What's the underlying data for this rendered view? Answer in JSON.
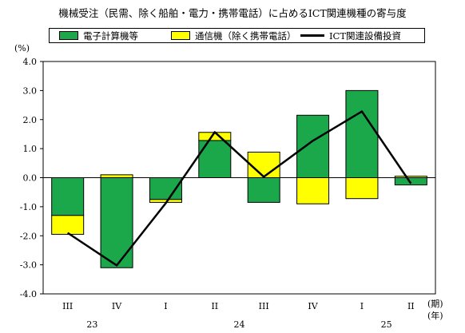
{
  "chart_data": {
    "type": "bar",
    "title": "機械受注（民需、除く船舶・電力・携帯電話）に占めるICT関連機種の寄与度",
    "ylabel": "(%)",
    "ylim": [
      -4.0,
      4.0
    ],
    "yticks": [
      "4.0",
      "3.0",
      "2.0",
      "1.0",
      "0.0",
      "-1.0",
      "-2.0",
      "-3.0",
      "-4.0"
    ],
    "categories": [
      "III",
      "IV",
      "I",
      "II",
      "III",
      "IV",
      "I",
      "II"
    ],
    "x_unit": "(期)",
    "year_unit": "(年)",
    "years": [
      {
        "label": "23",
        "center_index": 0.5
      },
      {
        "label": "24",
        "center_index": 3.5
      },
      {
        "label": "25",
        "center_index": 6.5
      }
    ],
    "stacked": true,
    "series": [
      {
        "name": "電子計算機等",
        "type": "bar",
        "color": "#1aa84b",
        "values": [
          -1.3,
          -3.1,
          -0.75,
          1.28,
          -0.85,
          2.15,
          3.0,
          -0.25
        ]
      },
      {
        "name": "通信機（除く携帯電話）",
        "type": "bar",
        "color": "#ffff00",
        "values": [
          -0.65,
          0.1,
          -0.1,
          0.28,
          0.88,
          -0.9,
          -0.72,
          0.05
        ]
      },
      {
        "name": "ICT関連設備投資",
        "type": "line",
        "color": "#000000",
        "values": [
          -1.9,
          -3.02,
          -0.88,
          1.57,
          0.03,
          1.27,
          2.28,
          -0.2
        ]
      }
    ],
    "legend_position": "top",
    "grid": false
  }
}
